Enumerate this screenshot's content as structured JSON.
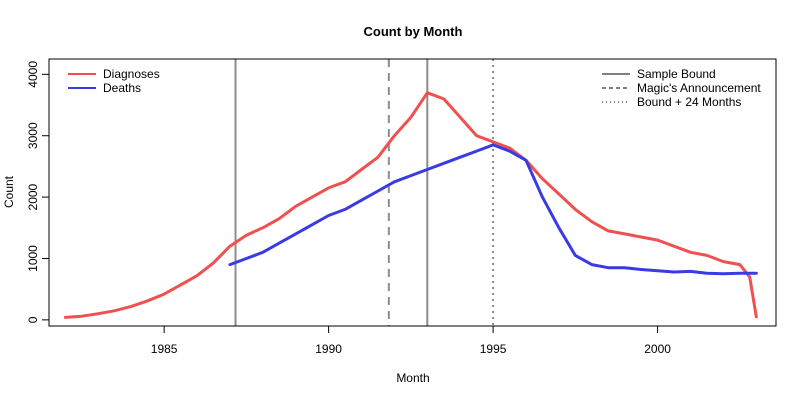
{
  "chart_data": {
    "type": "line",
    "title": "Count by Month",
    "xlabel": "Month",
    "ylabel": "Count",
    "xlim": [
      1981.5,
      2003.6
    ],
    "ylim": [
      -100,
      4250
    ],
    "x_ticks": [
      1985,
      1990,
      1995,
      2000
    ],
    "y_ticks": [
      0,
      1000,
      2000,
      3000,
      4000
    ],
    "grid": false,
    "series": [
      {
        "name": "Diagnoses",
        "color": "#f05050",
        "x": [
          1982.0,
          1982.5,
          1983.0,
          1983.5,
          1984.0,
          1984.5,
          1985.0,
          1985.5,
          1986.0,
          1986.5,
          1987.0,
          1987.5,
          1988.0,
          1988.5,
          1989.0,
          1989.5,
          1990.0,
          1990.5,
          1991.0,
          1991.5,
          1992.0,
          1992.5,
          1993.0,
          1993.5,
          1994.0,
          1994.5,
          1995.0,
          1995.5,
          1996.0,
          1996.5,
          1997.0,
          1997.5,
          1998.0,
          1998.5,
          1999.0,
          1999.5,
          2000.0,
          2000.5,
          2001.0,
          2001.5,
          2002.0,
          2002.5,
          2002.8,
          2003.0
        ],
        "values": [
          40,
          60,
          100,
          150,
          220,
          310,
          420,
          570,
          720,
          930,
          1200,
          1380,
          1500,
          1650,
          1850,
          2000,
          2150,
          2250,
          2450,
          2650,
          3000,
          3300,
          3700,
          3600,
          3300,
          3000,
          2900,
          2800,
          2600,
          2300,
          2050,
          1800,
          1600,
          1450,
          1400,
          1350,
          1300,
          1200,
          1100,
          1050,
          950,
          900,
          700,
          50
        ]
      },
      {
        "name": "Deaths",
        "color": "#3a3ae6",
        "x": [
          1987.0,
          1987.5,
          1988.0,
          1988.5,
          1989.0,
          1989.5,
          1990.0,
          1990.5,
          1991.0,
          1991.5,
          1992.0,
          1992.5,
          1993.0,
          1993.5,
          1994.0,
          1994.5,
          1995.0,
          1995.5,
          1996.0,
          1996.5,
          1997.0,
          1997.5,
          1998.0,
          1998.5,
          1999.0,
          1999.5,
          2000.0,
          2000.5,
          2001.0,
          2001.5,
          2002.0,
          2002.5,
          2003.0
        ],
        "values": [
          900,
          1000,
          1100,
          1250,
          1400,
          1550,
          1700,
          1800,
          1950,
          2100,
          2250,
          2350,
          2450,
          2550,
          2650,
          2750,
          2850,
          2750,
          2600,
          2000,
          1500,
          1050,
          900,
          850,
          850,
          820,
          800,
          780,
          790,
          760,
          750,
          760,
          760
        ]
      }
    ],
    "vlines": [
      {
        "name": "Sample Bound",
        "x": 1987.17,
        "style": "solid"
      },
      {
        "name": "Sample Bound",
        "x": 1993.0,
        "style": "solid"
      },
      {
        "name": "Magic's Announcement",
        "x": 1991.83,
        "style": "dashed"
      },
      {
        "name": "Bound + 24 Months",
        "x": 1995.0,
        "style": "dotted"
      }
    ],
    "legend_left": {
      "placement": "top-left",
      "entries": [
        {
          "label": "Diagnoses",
          "color": "#f05050",
          "style": "solid"
        },
        {
          "label": "Deaths",
          "color": "#3a3ae6",
          "style": "solid"
        }
      ]
    },
    "legend_right": {
      "placement": "top-right",
      "entries": [
        {
          "label": "Sample Bound",
          "color": "#000000",
          "style": "solid"
        },
        {
          "label": "Magic's Announcement",
          "color": "#000000",
          "style": "dashed"
        },
        {
          "label": "Bound + 24 Months",
          "color": "#000000",
          "style": "dotted"
        }
      ]
    }
  }
}
